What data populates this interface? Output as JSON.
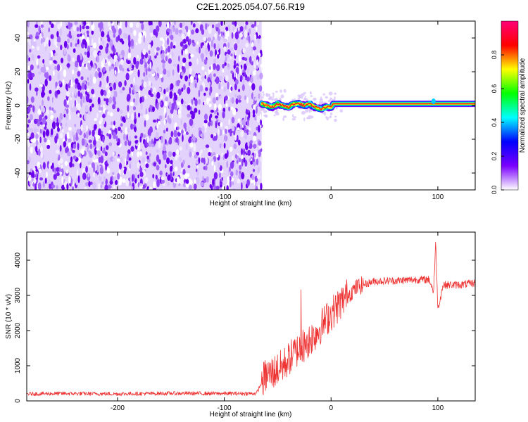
{
  "title": "C2E1.2025.054.07.56.R19",
  "chart_data": [
    {
      "type": "heatmap",
      "xlabel": "Height of straight line (km)",
      "ylabel": "Frequency (Hz)",
      "xlim": [
        -285,
        135
      ],
      "ylim": [
        -50,
        50
      ],
      "xticks": [
        -200,
        -100,
        0,
        100
      ],
      "yticks": [
        -40,
        -20,
        0,
        20,
        40
      ],
      "noise_region_x": [
        -285,
        -65
      ],
      "signal_region_x": [
        -65,
        135
      ],
      "signal_ridge": {
        "x": [
          -65,
          -60,
          -55,
          -50,
          -45,
          -40,
          -35,
          -30,
          -25,
          -20,
          -15,
          -10,
          -5,
          0,
          2,
          10,
          50,
          95,
          100,
          135
        ],
        "freq": [
          1,
          0,
          -1,
          1,
          0,
          -1,
          1,
          1,
          0,
          1,
          -1,
          -2,
          -1,
          -1,
          1,
          1,
          1,
          1,
          1,
          1
        ]
      },
      "colorbar": {
        "label": "Normalized spectral amplitude",
        "range": [
          0.0,
          1.0
        ],
        "ticks": [
          0.0,
          0.2,
          0.4,
          0.6,
          0.8
        ],
        "tick_labels": [
          "0.0",
          "0.2",
          "0.4",
          "0.6",
          "0.8"
        ],
        "colors": [
          "#ffffff",
          "#7a00ff",
          "#0000ff",
          "#00ffff",
          "#00ff00",
          "#ffff00",
          "#ff0000",
          "#ff0077"
        ]
      }
    },
    {
      "type": "line",
      "xlabel": "Height of straight line (km)",
      "ylabel": "SNR (10 * v/v)",
      "xlim": [
        -285,
        135
      ],
      "ylim": [
        0,
        4800
      ],
      "xticks": [
        -200,
        -100,
        0,
        100
      ],
      "yticks": [
        0,
        1000,
        2000,
        3000,
        4000
      ],
      "color": "#ee3333",
      "series": [
        {
          "x": [
            -285,
            -250,
            -200,
            -150,
            -100,
            -70,
            -62,
            -55,
            -45,
            -35,
            -25,
            -15,
            -5,
            5,
            15,
            25,
            40,
            60,
            80,
            92,
            96,
            98,
            100,
            105,
            120,
            135
          ],
          "y": [
            200,
            210,
            200,
            215,
            210,
            210,
            700,
            800,
            1000,
            1350,
            1600,
            1900,
            2300,
            2650,
            3000,
            3250,
            3400,
            3420,
            3450,
            3450,
            3100,
            4500,
            2600,
            3300,
            3300,
            3350
          ]
        }
      ]
    }
  ]
}
